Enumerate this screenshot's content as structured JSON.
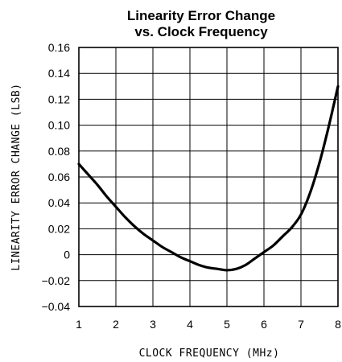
{
  "chart_data": {
    "type": "line",
    "title_line1": "Linearity Error Change",
    "title_line2": "vs. Clock Frequency",
    "xlabel": "CLOCK FREQUENCY (MHz)",
    "ylabel": "LINEARITY ERROR CHANGE (LSB)",
    "xlim": [
      1,
      8
    ],
    "ylim": [
      -0.04,
      0.16
    ],
    "grid": true,
    "x_ticks": [
      1,
      2,
      3,
      4,
      5,
      6,
      7,
      8
    ],
    "x_tick_labels": [
      "1",
      "2",
      "3",
      "4",
      "5",
      "6",
      "7",
      "8"
    ],
    "y_ticks": [
      0.16,
      0.14,
      0.12,
      0.1,
      0.08,
      0.06,
      0.04,
      0.02,
      0,
      -0.02,
      -0.04
    ],
    "y_tick_labels": [
      "0.16",
      "0.14",
      "0.12",
      "0.10",
      "0.08",
      "0.06",
      "0.04",
      "0.02",
      "0",
      "−0.02",
      "−0.04"
    ],
    "series": [
      {
        "x": [
          1.0,
          1.25,
          1.5,
          1.75,
          2.0,
          2.25,
          2.5,
          2.75,
          3.0,
          3.25,
          3.5,
          3.75,
          4.0,
          4.25,
          4.5,
          4.75,
          5.0,
          5.25,
          5.5,
          5.75,
          6.0,
          6.25,
          6.5,
          6.75,
          7.0,
          7.25,
          7.5,
          7.75,
          8.0
        ],
        "y": [
          0.07,
          0.062,
          0.054,
          0.045,
          0.037,
          0.029,
          0.022,
          0.016,
          0.011,
          0.006,
          0.002,
          -0.002,
          -0.005,
          -0.008,
          -0.01,
          -0.011,
          -0.012,
          -0.011,
          -0.008,
          -0.003,
          0.002,
          0.007,
          0.014,
          0.021,
          0.031,
          0.048,
          0.071,
          0.099,
          0.13
        ]
      }
    ]
  }
}
